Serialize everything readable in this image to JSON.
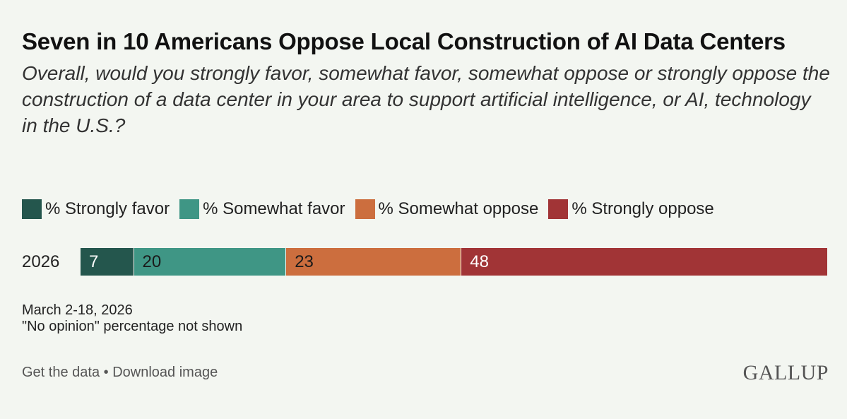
{
  "header": {
    "title": "Seven in 10 Americans Oppose Local Construction of AI Data Centers",
    "subtitle": "Overall, would you strongly favor, somewhat favor, somewhat oppose or strongly oppose the construction of a data center in your area to support artificial intelligence, or AI, technology in the U.S.?"
  },
  "chart_data": {
    "type": "bar",
    "orientation": "horizontal-stacked",
    "title": "Seven in 10 Americans Oppose Local Construction of AI Data Centers",
    "categories": [
      "2026"
    ],
    "legend_placement": "top",
    "grid": false,
    "xlim": [
      0,
      98
    ],
    "series": [
      {
        "name": "% Strongly favor",
        "values": [
          7
        ],
        "color": "#24564d",
        "label_color": "#ffffff"
      },
      {
        "name": "% Somewhat favor",
        "values": [
          20
        ],
        "color": "#3f9685",
        "label_color": "#1a1a1a"
      },
      {
        "name": "% Somewhat oppose",
        "values": [
          23
        ],
        "color": "#cc6e3e",
        "label_color": "#1a1a1a"
      },
      {
        "name": "% Strongly oppose",
        "values": [
          48
        ],
        "color": "#a13436",
        "label_color": "#ffffff"
      }
    ]
  },
  "notes": {
    "date": "March 2-18, 2026",
    "footnote": "\"No opinion\" percentage not shown"
  },
  "footer": {
    "get_data": "Get the data",
    "separator": "•",
    "download": "Download image",
    "logo": "GALLUP"
  }
}
